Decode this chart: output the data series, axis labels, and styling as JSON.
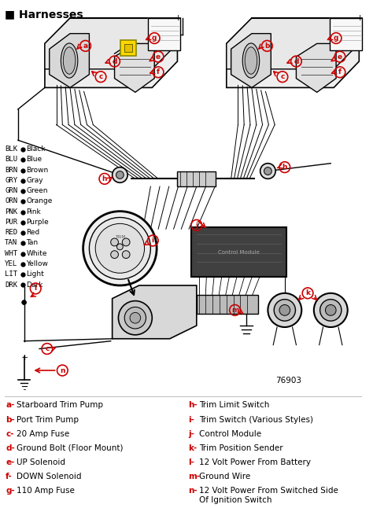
{
  "title": "Harnesses",
  "bg_color": "#ffffff",
  "diagram_number": "76903",
  "color_legend": [
    [
      "BLK",
      "Black"
    ],
    [
      "BLU",
      "Blue"
    ],
    [
      "BRN",
      "Brown"
    ],
    [
      "GRY",
      "Gray"
    ],
    [
      "GRN",
      "Green"
    ],
    [
      "ORN",
      "Orange"
    ],
    [
      "PNK",
      "Pink"
    ],
    [
      "PUR",
      "Purple"
    ],
    [
      "RED",
      "Red"
    ],
    [
      "TAN",
      "Tan"
    ],
    [
      "WHT",
      "White"
    ],
    [
      "YEL",
      "Yellow"
    ],
    [
      "LIT",
      "Light"
    ],
    [
      "DRK",
      "Dark"
    ]
  ],
  "legend_left": [
    [
      "a",
      "Starboard Trim Pump"
    ],
    [
      "b",
      "Port Trim Pump"
    ],
    [
      "c",
      "20 Amp Fuse"
    ],
    [
      "d",
      "Ground Bolt (Floor Mount)"
    ],
    [
      "e",
      "UP Solenoid"
    ],
    [
      "f",
      "DOWN Solenoid"
    ],
    [
      "g",
      "110 Amp Fuse"
    ]
  ],
  "legend_right": [
    [
      "h",
      "Trim Limit Switch"
    ],
    [
      "i",
      "Trim Switch (Various Styles)"
    ],
    [
      "j",
      "Control Module"
    ],
    [
      "k",
      "Trim Position Sender"
    ],
    [
      "l",
      "12 Volt Power From Battery"
    ],
    [
      "m",
      "Ground Wire"
    ],
    [
      "n",
      "12 Volt Power From Switched Side\nOf Ignition Switch"
    ]
  ],
  "label_color": "#cc0000",
  "text_color": "#000000",
  "line_color": "#000000",
  "gray_line": "#555555",
  "light_gray": "#888888"
}
